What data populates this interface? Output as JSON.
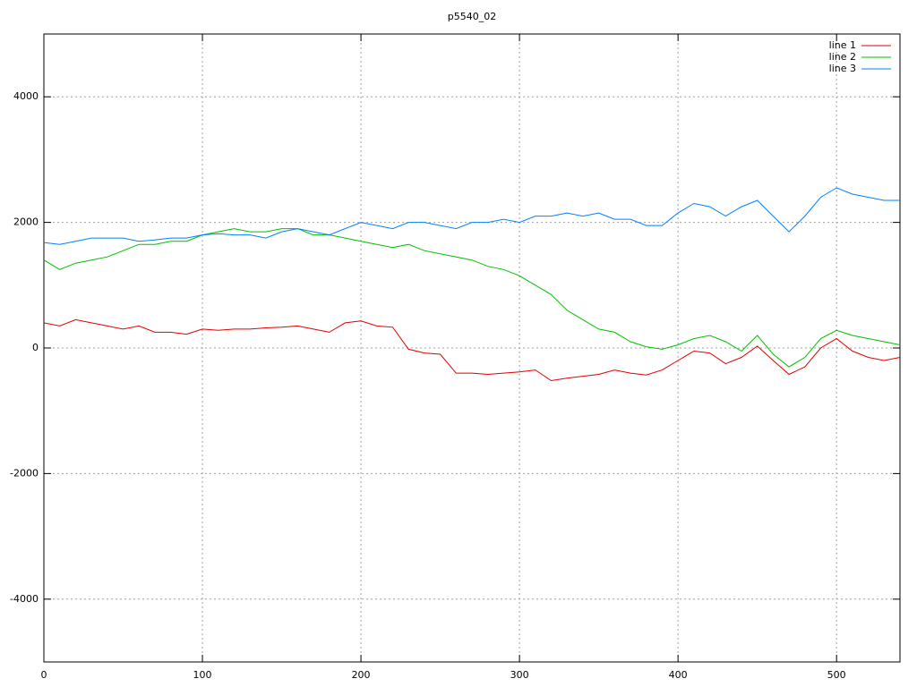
{
  "chart_data": {
    "type": "line",
    "title": "p5540_02",
    "x": [
      0,
      10,
      20,
      30,
      40,
      50,
      60,
      70,
      80,
      90,
      100,
      110,
      120,
      130,
      140,
      150,
      160,
      170,
      180,
      190,
      200,
      210,
      220,
      230,
      240,
      250,
      260,
      270,
      280,
      290,
      300,
      310,
      320,
      330,
      340,
      350,
      360,
      370,
      380,
      390,
      400,
      410,
      420,
      430,
      440,
      450,
      460,
      470,
      480,
      490,
      500,
      510,
      520,
      530,
      540
    ],
    "series": [
      {
        "name": "line 1",
        "color": "#e00000",
        "values": [
          400,
          350,
          450,
          400,
          350,
          300,
          350,
          250,
          250,
          220,
          300,
          280,
          300,
          300,
          320,
          330,
          350,
          300,
          250,
          400,
          430,
          350,
          330,
          -20,
          -80,
          -100,
          -400,
          -400,
          -420,
          -400,
          -380,
          -350,
          -520,
          -480,
          -450,
          -420,
          -350,
          -400,
          -430,
          -350,
          -200,
          -50,
          -80,
          -250,
          -150,
          30,
          -200,
          -420,
          -300,
          0,
          150,
          -50,
          -150,
          -200,
          -150
        ]
      },
      {
        "name": "line 2",
        "color": "#00c000",
        "values": [
          1400,
          1250,
          1350,
          1400,
          1450,
          1550,
          1650,
          1650,
          1700,
          1700,
          1800,
          1850,
          1900,
          1850,
          1850,
          1900,
          1900,
          1800,
          1800,
          1750,
          1700,
          1650,
          1600,
          1650,
          1550,
          1500,
          1450,
          1400,
          1300,
          1250,
          1150,
          1000,
          850,
          600,
          450,
          300,
          250,
          100,
          20,
          -20,
          50,
          150,
          200,
          100,
          -50,
          200,
          -100,
          -300,
          -150,
          150,
          280,
          200,
          150,
          100,
          50
        ]
      },
      {
        "name": "line 3",
        "color": "#0080ff",
        "values": [
          1680,
          1650,
          1700,
          1750,
          1750,
          1750,
          1700,
          1720,
          1750,
          1750,
          1800,
          1820,
          1800,
          1800,
          1750,
          1850,
          1900,
          1850,
          1800,
          1900,
          2000,
          1950,
          1900,
          2000,
          2000,
          1950,
          1900,
          2000,
          2000,
          2050,
          2000,
          2100,
          2100,
          2150,
          2100,
          2150,
          2050,
          2050,
          1950,
          1950,
          2150,
          2300,
          2250,
          2100,
          2250,
          2350,
          2100,
          1850,
          2100,
          2400,
          2550,
          2450,
          2400,
          2350,
          2350
        ]
      }
    ],
    "xlim": [
      0,
      540
    ],
    "xticks": [
      0,
      100,
      200,
      300,
      400,
      500
    ],
    "ylim": [
      -5000,
      5000
    ],
    "yticks": [
      -4000,
      -2000,
      0,
      2000,
      4000
    ],
    "grid": true,
    "legend": "top-right"
  }
}
